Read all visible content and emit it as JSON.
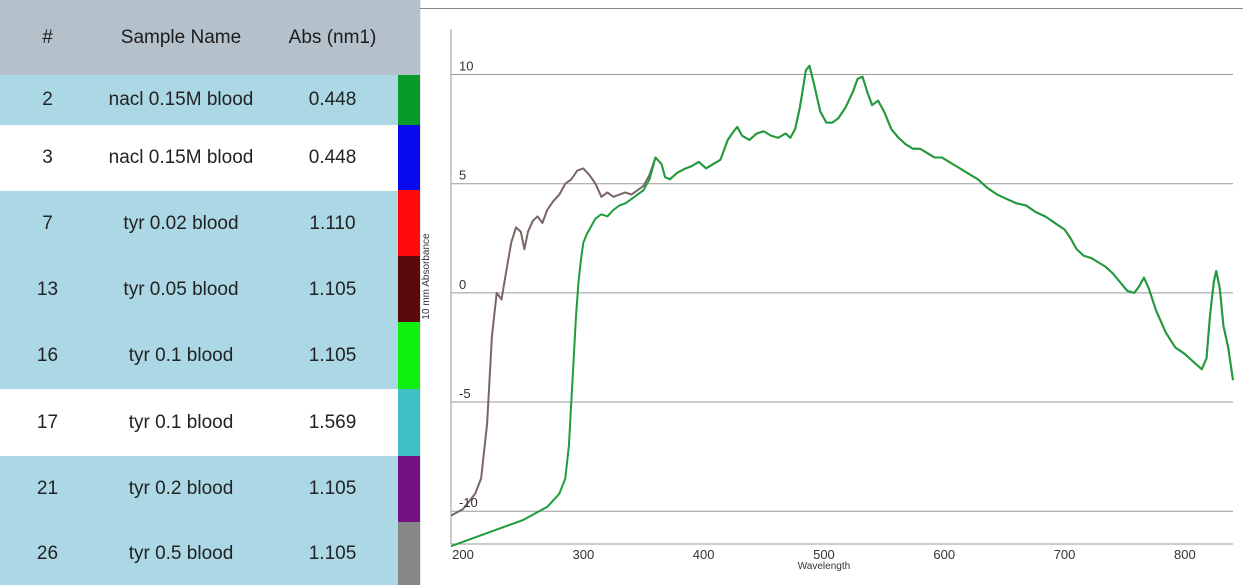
{
  "table": {
    "headers": {
      "number": "#",
      "sample_name": "Sample Name",
      "abs": "Abs (nm1)"
    },
    "rows": [
      {
        "number": "2",
        "name": "nacl 0.15M blood",
        "abs": "0.448",
        "color": "#099b2a",
        "bg": "#acd8e6"
      },
      {
        "number": "3",
        "name": "nacl 0.15M blood",
        "abs": "0.448",
        "color": "#0a0aee",
        "bg": "#ffffff"
      },
      {
        "number": "7",
        "name": "tyr 0.02 blood",
        "abs": "1.110",
        "color": "#ff0a0a",
        "bg": "#acd8e6"
      },
      {
        "number": "13",
        "name": "tyr 0.05 blood",
        "abs": "1.105",
        "color": "#5a0a0a",
        "bg": "#acd8e6"
      },
      {
        "number": "16",
        "name": "tyr 0.1 blood",
        "abs": "1.105",
        "color": "#10f010",
        "bg": "#acd8e6"
      },
      {
        "number": "17",
        "name": "tyr 0.1 blood",
        "abs": "1.569",
        "color": "#3ec0c4",
        "bg": "#ffffff"
      },
      {
        "number": "21",
        "name": "tyr 0.2 blood",
        "abs": "1.105",
        "color": "#751080",
        "bg": "#acd8e6"
      },
      {
        "number": "26",
        "name": "tyr 0.5 blood",
        "abs": "1.105",
        "color": "#878787",
        "bg": "#acd8e6"
      }
    ]
  },
  "chart_data": {
    "type": "line",
    "xlabel": "Wavelength",
    "ylabel": "10 mm Absorbance",
    "x_ticks": [
      "200",
      "300",
      "400",
      "500",
      "600",
      "700",
      "800"
    ],
    "y_ticks": [
      "10",
      "5",
      "0",
      "-5",
      "-10"
    ],
    "xlim": [
      190,
      840
    ],
    "ylim": [
      -11.5,
      13
    ],
    "grid": "horizontal",
    "series": [
      {
        "color": "#7a6565",
        "points": [
          [
            190,
            -10.2
          ],
          [
            200,
            -9.9
          ],
          [
            210,
            -9.2
          ],
          [
            215,
            -8.5
          ],
          [
            220,
            -6
          ],
          [
            224,
            -2
          ],
          [
            228,
            0
          ],
          [
            232,
            -0.3
          ],
          [
            236,
            1
          ],
          [
            240,
            2.3
          ],
          [
            244,
            3
          ],
          [
            248,
            2.8
          ],
          [
            251,
            2
          ],
          [
            254,
            2.8
          ],
          [
            258,
            3.3
          ],
          [
            262,
            3.5
          ],
          [
            266,
            3.2
          ],
          [
            270,
            3.8
          ],
          [
            275,
            4.2
          ],
          [
            280,
            4.5
          ],
          [
            285,
            5
          ],
          [
            290,
            5.2
          ],
          [
            295,
            5.6
          ],
          [
            300,
            5.7
          ],
          [
            305,
            5.4
          ],
          [
            310,
            5
          ],
          [
            315,
            4.4
          ],
          [
            320,
            4.6
          ],
          [
            325,
            4.4
          ],
          [
            330,
            4.5
          ],
          [
            335,
            4.6
          ],
          [
            340,
            4.5
          ],
          [
            345,
            4.7
          ],
          [
            350,
            4.9
          ],
          [
            355,
            5.4
          ],
          [
            360,
            6.2
          ],
          [
            365,
            5.9
          ],
          [
            368,
            5.3
          ],
          [
            372,
            5.2
          ],
          [
            378,
            5.5
          ],
          [
            385,
            5.7
          ],
          [
            390,
            5.8
          ],
          [
            396,
            6
          ],
          [
            402,
            5.7
          ],
          [
            408,
            5.9
          ],
          [
            414,
            6.1
          ],
          [
            420,
            7
          ],
          [
            425,
            7.4
          ],
          [
            428,
            7.6
          ],
          [
            432,
            7.2
          ],
          [
            438,
            7
          ],
          [
            444,
            7.3
          ],
          [
            450,
            7.4
          ],
          [
            456,
            7.2
          ],
          [
            462,
            7.1
          ],
          [
            468,
            7.3
          ],
          [
            472,
            7.1
          ],
          [
            476,
            7.5
          ],
          [
            480,
            8.5
          ],
          [
            485,
            10.2
          ],
          [
            488,
            10.4
          ],
          [
            492,
            9.5
          ],
          [
            497,
            8.3
          ],
          [
            502,
            7.8
          ],
          [
            507,
            7.8
          ],
          [
            512,
            8
          ],
          [
            518,
            8.5
          ],
          [
            524,
            9.2
          ],
          [
            528,
            9.8
          ],
          [
            532,
            9.9
          ],
          [
            536,
            9.2
          ],
          [
            540,
            8.6
          ],
          [
            545,
            8.8
          ],
          [
            550,
            8.3
          ],
          [
            556,
            7.5
          ],
          [
            562,
            7.1
          ],
          [
            568,
            6.8
          ],
          [
            574,
            6.6
          ],
          [
            580,
            6.6
          ],
          [
            586,
            6.4
          ],
          [
            592,
            6.2
          ],
          [
            598,
            6.2
          ],
          [
            604,
            6
          ],
          [
            610,
            5.8
          ],
          [
            616,
            5.6
          ],
          [
            622,
            5.4
          ],
          [
            628,
            5.2
          ],
          [
            636,
            4.8
          ],
          [
            644,
            4.5
          ],
          [
            652,
            4.3
          ],
          [
            660,
            4.1
          ],
          [
            668,
            4
          ],
          [
            676,
            3.7
          ],
          [
            684,
            3.5
          ],
          [
            692,
            3.2
          ],
          [
            700,
            2.9
          ],
          [
            705,
            2.5
          ],
          [
            710,
            2
          ],
          [
            716,
            1.7
          ],
          [
            722,
            1.6
          ],
          [
            728,
            1.4
          ],
          [
            734,
            1.2
          ],
          [
            740,
            0.9
          ],
          [
            746,
            0.5
          ],
          [
            752,
            0.1
          ],
          [
            758,
            0
          ],
          [
            762,
            0.3
          ],
          [
            766,
            0.7
          ],
          [
            770,
            0.2
          ],
          [
            776,
            -0.8
          ],
          [
            784,
            -1.8
          ],
          [
            792,
            -2.5
          ],
          [
            800,
            -2.8
          ],
          [
            808,
            -3.2
          ],
          [
            814,
            -3.5
          ],
          [
            818,
            -3
          ],
          [
            821,
            -1
          ],
          [
            824,
            0.5
          ],
          [
            826,
            1
          ],
          [
            829,
            0.2
          ],
          [
            832,
            -1.5
          ],
          [
            836,
            -2.5
          ],
          [
            840,
            -4
          ]
        ]
      },
      {
        "color": "#1e9d3a",
        "points": [
          [
            190,
            -11.6
          ],
          [
            200,
            -11.4
          ],
          [
            210,
            -11.2
          ],
          [
            220,
            -11
          ],
          [
            230,
            -10.8
          ],
          [
            240,
            -10.6
          ],
          [
            250,
            -10.4
          ],
          [
            260,
            -10.1
          ],
          [
            270,
            -9.8
          ],
          [
            280,
            -9.2
          ],
          [
            285,
            -8.5
          ],
          [
            288,
            -7
          ],
          [
            290,
            -5
          ],
          [
            292,
            -3
          ],
          [
            294,
            -1
          ],
          [
            296,
            0.5
          ],
          [
            298,
            1.5
          ],
          [
            300,
            2.3
          ],
          [
            303,
            2.7
          ],
          [
            306,
            3
          ],
          [
            310,
            3.4
          ],
          [
            315,
            3.6
          ],
          [
            320,
            3.5
          ],
          [
            325,
            3.8
          ],
          [
            330,
            4
          ],
          [
            335,
            4.1
          ],
          [
            340,
            4.3
          ],
          [
            345,
            4.5
          ],
          [
            350,
            4.7
          ],
          [
            355,
            5.2
          ],
          [
            360,
            6.2
          ],
          [
            365,
            5.9
          ],
          [
            368,
            5.3
          ],
          [
            372,
            5.2
          ],
          [
            378,
            5.5
          ],
          [
            385,
            5.7
          ],
          [
            390,
            5.8
          ],
          [
            396,
            6
          ],
          [
            402,
            5.7
          ],
          [
            408,
            5.9
          ],
          [
            414,
            6.1
          ],
          [
            420,
            7
          ],
          [
            425,
            7.4
          ],
          [
            428,
            7.6
          ],
          [
            432,
            7.2
          ],
          [
            438,
            7
          ],
          [
            444,
            7.3
          ],
          [
            450,
            7.4
          ],
          [
            456,
            7.2
          ],
          [
            462,
            7.1
          ],
          [
            468,
            7.3
          ],
          [
            472,
            7.1
          ],
          [
            476,
            7.5
          ],
          [
            480,
            8.5
          ],
          [
            485,
            10.2
          ],
          [
            488,
            10.4
          ],
          [
            492,
            9.5
          ],
          [
            497,
            8.3
          ],
          [
            502,
            7.8
          ],
          [
            507,
            7.8
          ],
          [
            512,
            8
          ],
          [
            518,
            8.5
          ],
          [
            524,
            9.2
          ],
          [
            528,
            9.8
          ],
          [
            532,
            9.9
          ],
          [
            536,
            9.2
          ],
          [
            540,
            8.6
          ],
          [
            545,
            8.8
          ],
          [
            550,
            8.3
          ],
          [
            556,
            7.5
          ],
          [
            562,
            7.1
          ],
          [
            568,
            6.8
          ],
          [
            574,
            6.6
          ],
          [
            580,
            6.6
          ],
          [
            586,
            6.4
          ],
          [
            592,
            6.2
          ],
          [
            598,
            6.2
          ],
          [
            604,
            6
          ],
          [
            610,
            5.8
          ],
          [
            616,
            5.6
          ],
          [
            622,
            5.4
          ],
          [
            628,
            5.2
          ],
          [
            636,
            4.8
          ],
          [
            644,
            4.5
          ],
          [
            652,
            4.3
          ],
          [
            660,
            4.1
          ],
          [
            668,
            4
          ],
          [
            676,
            3.7
          ],
          [
            684,
            3.5
          ],
          [
            692,
            3.2
          ],
          [
            700,
            2.9
          ],
          [
            705,
            2.5
          ],
          [
            710,
            2
          ],
          [
            716,
            1.7
          ],
          [
            722,
            1.6
          ],
          [
            728,
            1.4
          ],
          [
            734,
            1.2
          ],
          [
            740,
            0.9
          ],
          [
            746,
            0.5
          ],
          [
            752,
            0.1
          ],
          [
            758,
            0
          ],
          [
            762,
            0.3
          ],
          [
            766,
            0.7
          ],
          [
            770,
            0.2
          ],
          [
            776,
            -0.8
          ],
          [
            784,
            -1.8
          ],
          [
            792,
            -2.5
          ],
          [
            800,
            -2.8
          ],
          [
            808,
            -3.2
          ],
          [
            814,
            -3.5
          ],
          [
            818,
            -3
          ],
          [
            821,
            -1
          ],
          [
            824,
            0.5
          ],
          [
            826,
            1
          ],
          [
            829,
            0.2
          ],
          [
            832,
            -1.5
          ],
          [
            836,
            -2.5
          ],
          [
            840,
            -4
          ]
        ]
      }
    ]
  }
}
